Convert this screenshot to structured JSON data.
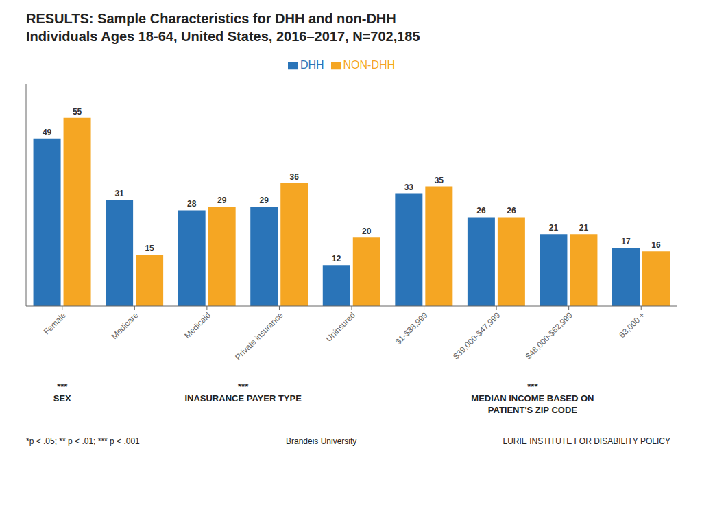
{
  "chart_data": {
    "type": "bar",
    "title": "RESULTS: Sample Characteristics for DHH and non-DHH\nIndividuals Ages 18-64, United States, 2016–2017, N=702,185",
    "categories": [
      "Female",
      "Medicare",
      "Medicaid",
      "Private insurance",
      "Uninsured",
      "$1-$38,999",
      "$39,000-$47,999",
      "$48,000-$62,999",
      "63,000 +"
    ],
    "series": [
      {
        "name": "DHH",
        "color": "#2a74b8",
        "values": [
          49,
          31,
          28,
          29,
          12,
          33,
          26,
          21,
          17
        ]
      },
      {
        "name": "NON-DHH",
        "color": "#f5a623",
        "values": [
          55,
          15,
          29,
          36,
          20,
          35,
          26,
          21,
          16
        ]
      }
    ],
    "ylim": [
      0,
      65
    ],
    "data_labels": true,
    "legend": "top",
    "grid": false,
    "tick_labels": "x",
    "annotations": [
      {
        "text": "***",
        "categories": [
          "Female"
        ]
      },
      {
        "text": "SEX",
        "categories": [
          "Female"
        ]
      },
      {
        "text": "***",
        "categories": [
          "Medicare",
          "Medicaid",
          "Private insurance",
          "Uninsured"
        ]
      },
      {
        "text": "INASURANCE PAYER TYPE",
        "categories": [
          "Medicare",
          "Medicaid",
          "Private insurance",
          "Uninsured"
        ]
      },
      {
        "text": "***",
        "categories": [
          "$1-$38,999",
          "$39,000-$47,999",
          "$48,000-$62,999",
          "63,000 +"
        ]
      },
      {
        "text": "MEDIAN INCOME BASED ON\nPATIENT'S ZIP CODE",
        "categories": [
          "$1-$38,999",
          "$39,000-$47,999",
          "$48,000-$62,999",
          "63,000 +"
        ]
      },
      {
        "text": "*p < .05; ** p < .01; *** p < .001"
      },
      {
        "text": "Brandeis University"
      },
      {
        "text": "LURIE INSTITUTE FOR DISABILITY POLICY"
      }
    ]
  }
}
